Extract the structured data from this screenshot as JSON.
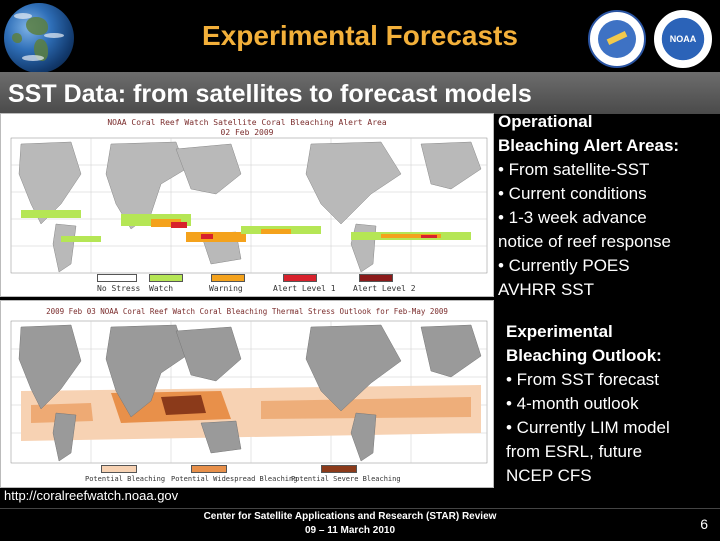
{
  "header": {
    "title": "Experimental Forecasts",
    "subtitle": "SST Data: from satellites to forecast models"
  },
  "map_alert": {
    "title": "NOAA Coral Reef Watch Satellite Coral Bleaching Alert Area",
    "date": "02 Feb 2009",
    "legend": [
      {
        "label": "No Stress",
        "color": "#ffffff"
      },
      {
        "label": "Watch",
        "color": "#b5e655"
      },
      {
        "label": "Warning",
        "color": "#f4a21c"
      },
      {
        "label": "Alert Level 1",
        "color": "#d8212c"
      },
      {
        "label": "Alert Level 2",
        "color": "#8b1a1a"
      }
    ]
  },
  "map_outlook": {
    "title": "2009 Feb 03 NOAA Coral Reef Watch Coral Bleaching Thermal Stress Outlook for Feb-May 2009",
    "legend": [
      {
        "label": "Potential Bleaching",
        "color": "#f7d2b3"
      },
      {
        "label": "Potential Widespread Bleaching",
        "color": "#e8904a"
      },
      {
        "label": "Potential Severe Bleaching",
        "color": "#8b3a1a"
      }
    ]
  },
  "panel_alert": {
    "heading_line1": "Operational",
    "heading_line2": "Bleaching Alert Areas:",
    "bullets": [
      "• From satellite-SST",
      "• Current conditions",
      "• 1-3 week advance",
      "notice of reef response",
      "• Currently POES",
      "AVHRR SST"
    ]
  },
  "panel_outlook": {
    "heading_line1": "Experimental",
    "heading_line2": "Bleaching Outlook:",
    "bullets": [
      "• From SST forecast",
      "• 4-month outlook",
      "• Currently LIM model",
      "from ESRL, future",
      "NCEP CFS"
    ]
  },
  "footer": {
    "url": "http://coralreefwatch.noaa.gov",
    "center_line1": "Center for Satellite Applications and Research (STAR) Review",
    "center_line2": "09 – 11 March 2010",
    "page_number": "6"
  },
  "logos": {
    "left": "earth-globe-icon",
    "right1": "nasa-seal-icon",
    "right2": "noaa-logo-icon",
    "noaa_text": "NOAA"
  }
}
